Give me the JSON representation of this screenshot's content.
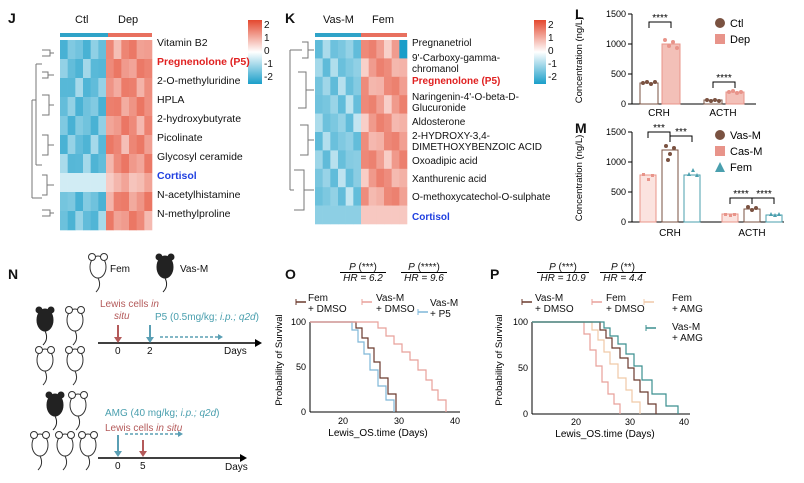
{
  "panels": {
    "J": "J",
    "K": "K",
    "L": "L",
    "M": "M",
    "N": "N",
    "O": "O",
    "P": "P"
  },
  "heatmapJ": {
    "groups": [
      "Ctl",
      "Dep"
    ],
    "rows": [
      {
        "label": "Vitamin B2",
        "style": "normal"
      },
      {
        "label": "Pregnenolone (P5)",
        "style": "red"
      },
      {
        "label": "2-O-methyluridine",
        "style": "normal"
      },
      {
        "label": "HPLA",
        "style": "normal"
      },
      {
        "label": "2-hydroxybutyrate",
        "style": "normal"
      },
      {
        "label": "Picolinate",
        "style": "normal"
      },
      {
        "label": "Glycosyl ceramide",
        "style": "normal"
      },
      {
        "label": "Cortisol",
        "style": "blue"
      },
      {
        "label": "N-acetylhistamine",
        "style": "normal"
      },
      {
        "label": "N-methylproline",
        "style": "normal"
      }
    ],
    "scale": [
      "2",
      "1",
      "0",
      "-1",
      "-2"
    ]
  },
  "heatmapK": {
    "groups": [
      "Vas-M",
      "Fem"
    ],
    "rows": [
      {
        "lines": [
          "Pregnanetriol"
        ],
        "style": "normal"
      },
      {
        "lines": [
          "9'-Carboxy-gamma-",
          "chromanol"
        ],
        "style": "normal"
      },
      {
        "lines": [
          "Pregnenolone (P5)"
        ],
        "style": "red"
      },
      {
        "lines": [
          "Naringenin-4'-O-beta-D-",
          "Glucuronide"
        ],
        "style": "normal"
      },
      {
        "lines": [
          "Aldosterone"
        ],
        "style": "normal"
      },
      {
        "lines": [
          "2-HYDROXY-3,4-",
          "DIMETHOXYBENZOIC ACID"
        ],
        "style": "normal"
      },
      {
        "lines": [
          "Oxoadipic acid"
        ],
        "style": "normal"
      },
      {
        "lines": [
          "Xanthurenic acid"
        ],
        "style": "normal"
      },
      {
        "lines": [
          "O-methoxycatechol-O-sulphate"
        ],
        "style": "normal"
      },
      {
        "lines": [
          "Cortisol"
        ],
        "style": "blue"
      }
    ],
    "scale": [
      "2",
      "1",
      "0",
      "-1",
      "-2"
    ]
  },
  "chartL": {
    "ylabel": "Concentration (ng/L)",
    "yticks": [
      "1500",
      "1000",
      "500",
      "0"
    ],
    "categories": [
      "CRH",
      "ACTH"
    ],
    "legend": [
      "Ctl",
      "Dep"
    ],
    "sig": [
      "****",
      "****"
    ]
  },
  "chartM": {
    "ylabel": "Concentration (ng/L)",
    "yticks": [
      "1500",
      "1000",
      "500",
      "0"
    ],
    "categories": [
      "CRH",
      "ACTH"
    ],
    "legend": [
      "Vas-M",
      "Cas-M",
      "Fem"
    ],
    "sig": [
      "***",
      "***",
      "****",
      "****"
    ]
  },
  "panelN": {
    "fem": "Fem",
    "vasm": "Vas-M",
    "lewis1_a": "Lewis cells ",
    "lewis1_b": "in",
    "lewis1_c": "situ",
    "p5_a": "P5 (0.5mg/kg; ",
    "p5_b": "i.p.; q2d",
    "p5_c": ")",
    "t0": "0",
    "t2": "2",
    "days1": "Days",
    "amg_a": "AMG (40 mg/kg; ",
    "amg_b": "i.p.; q2d",
    "amg_c": ")",
    "lewis2_a": "Lewis cells ",
    "lewis2_b": "in situ",
    "t0b": "0",
    "t5": "5",
    "days2": "Days"
  },
  "chartO": {
    "p1_a": "P",
    "p1_b": " (***)",
    "hr1": "HR = 6.2",
    "p2_a": "P",
    "p2_b": " (****)",
    "hr2": "HR = 9.6",
    "legend1": [
      "Fem",
      "+ DMSO"
    ],
    "legend2": [
      "Vas-M",
      "+ DMSO"
    ],
    "legend3": [
      "Vas-M",
      "+ P5"
    ],
    "ylabel": "Probability of Survival",
    "xlabel": "Lewis_OS.time (Days)",
    "yticks": [
      "100",
      "50",
      "0"
    ],
    "xticks": [
      "20",
      "30",
      "40"
    ]
  },
  "chartP": {
    "p1_a": "P",
    "p1_b": " (***)",
    "hr1": "HR = 10.9",
    "p2_a": "P",
    "p2_b": " (**)",
    "hr2": "HR = 4.4",
    "legend1": [
      "Vas-M",
      "+ DMSO"
    ],
    "legend2": [
      "Fem",
      "+ DMSO"
    ],
    "legend3": [
      "Fem",
      "+ AMG"
    ],
    "legend4": [
      "Vas-M",
      "+ AMG"
    ],
    "ylabel": "Probability of Survival",
    "xlabel": "Lewis_OS.time (Days)",
    "yticks": [
      "100",
      "50",
      "0"
    ],
    "xticks": [
      "20",
      "30",
      "40"
    ]
  },
  "colors": {
    "heat_hi": "#e4482f",
    "heat_lo": "#1a9ec9",
    "ctl": "#7a5241",
    "dep": "#e8948a",
    "vasm": "#7a5241",
    "casm": "#e8948a",
    "fem": "#4a9fae",
    "km_fem": "#6b3a2e",
    "km_vasm": "#e8a09a",
    "km_p5": "#7fb7d8",
    "km_amg": "#f0c9a8",
    "km_vasm_amg": "#3b8f8f",
    "red_label": "#e02020",
    "blue_label": "#2040e0"
  }
}
